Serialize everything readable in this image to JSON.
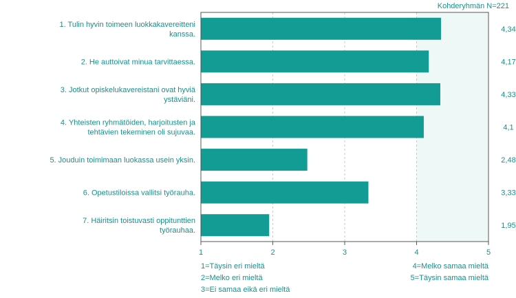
{
  "chart_data": {
    "type": "bar",
    "orientation": "horizontal",
    "note": "Kohderyhmän N=221",
    "categories": [
      [
        "1. Tulin hyvin toimeen luokkakavereitteni",
        "kanssa."
      ],
      [
        "2. He auttoivat minua tarvittaessa."
      ],
      [
        "3. Jotkut opiskelukavereistani ovat hyviä",
        "ystäviäni."
      ],
      [
        "4. Yhteisten ryhmätöiden, harjoitusten ja",
        "tehtävien tekeminen oli sujuvaa."
      ],
      [
        "5. Jouduin toimimaan luokassa usein yksin."
      ],
      [
        "6. Opetustiloissa vallitsi työrauha."
      ],
      [
        "7. Häiritsin toistuvasti oppitunttien",
        "työrauhaa."
      ]
    ],
    "values": [
      4.34,
      4.17,
      4.33,
      4.1,
      2.48,
      3.33,
      1.95
    ],
    "value_labels": [
      "4,34",
      "4,17",
      "4,33",
      "4,1",
      "2,48",
      "3,33",
      "1,95"
    ],
    "xlim": [
      1,
      5
    ],
    "xticks": [
      "1",
      "2",
      "3",
      "4",
      "5"
    ],
    "grid": true,
    "legend_left": [
      "1=Täysin eri mieltä",
      "2=Melko eri mieltä",
      "3=Ei samaa eikä eri mieltä"
    ],
    "legend_right": [
      "4=Melko samaa mieltä",
      "5=Täysin samaa mieltä"
    ],
    "colors": {
      "bar": "#139c94",
      "text": "#1a8f8a",
      "plot_bg": "#ffffff",
      "highlight_bg": "#eef8f7",
      "axis": "#555555",
      "grid": "#c8c8c8"
    }
  }
}
